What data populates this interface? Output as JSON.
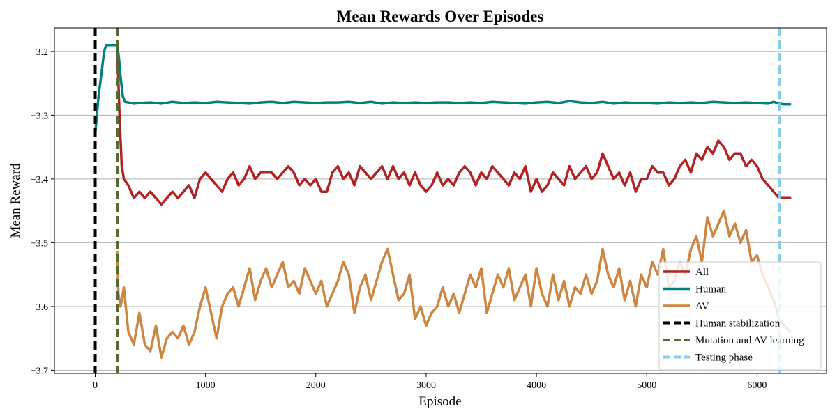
{
  "chart_data": {
    "type": "line",
    "title": "Mean Rewards Over Episodes",
    "xlabel": "Episode",
    "ylabel": "Mean Reward",
    "xlim": [
      -370,
      6630
    ],
    "ylim": [
      -3.705,
      -3.163
    ],
    "xticks": [
      0,
      1000,
      2000,
      3000,
      4000,
      5000,
      6000
    ],
    "xtick_labels": [
      "0",
      "1000",
      "2000",
      "3000",
      "4000",
      "5000",
      "6000"
    ],
    "yticks": [
      -3.7,
      -3.6,
      -3.5,
      -3.4,
      -3.3,
      -3.2
    ],
    "ytick_labels": [
      "−3.7",
      "−3.6",
      "−3.5",
      "−3.4",
      "−3.3",
      "−3.2"
    ],
    "grid": "horizontal",
    "legend_position": "lower-right",
    "series": [
      {
        "name": "All",
        "color": "#b22222",
        "x": [
          200,
          220,
          240,
          260,
          300,
          350,
          400,
          450,
          500,
          550,
          600,
          650,
          700,
          750,
          800,
          850,
          900,
          950,
          1000,
          1050,
          1100,
          1150,
          1200,
          1250,
          1300,
          1350,
          1400,
          1450,
          1500,
          1550,
          1600,
          1650,
          1700,
          1750,
          1800,
          1850,
          1900,
          1950,
          2000,
          2050,
          2100,
          2150,
          2200,
          2250,
          2300,
          2350,
          2400,
          2450,
          2500,
          2550,
          2600,
          2650,
          2700,
          2750,
          2800,
          2850,
          2900,
          2950,
          3000,
          3050,
          3100,
          3150,
          3200,
          3250,
          3300,
          3350,
          3400,
          3450,
          3500,
          3550,
          3600,
          3650,
          3700,
          3750,
          3800,
          3850,
          3900,
          3950,
          4000,
          4050,
          4100,
          4150,
          4200,
          4250,
          4300,
          4350,
          4400,
          4450,
          4500,
          4550,
          4600,
          4650,
          4700,
          4750,
          4800,
          4850,
          4900,
          4950,
          5000,
          5050,
          5100,
          5150,
          5200,
          5250,
          5300,
          5350,
          5400,
          5450,
          5500,
          5550,
          5600,
          5650,
          5700,
          5750,
          5800,
          5850,
          5900,
          5950,
          6000,
          6050,
          6100,
          6150,
          6200,
          6250,
          6300
        ],
        "values": [
          -3.19,
          -3.3,
          -3.38,
          -3.4,
          -3.41,
          -3.43,
          -3.42,
          -3.43,
          -3.42,
          -3.43,
          -3.44,
          -3.43,
          -3.42,
          -3.43,
          -3.42,
          -3.41,
          -3.43,
          -3.4,
          -3.39,
          -3.4,
          -3.41,
          -3.42,
          -3.4,
          -3.39,
          -3.41,
          -3.4,
          -3.38,
          -3.4,
          -3.39,
          -3.39,
          -3.39,
          -3.4,
          -3.39,
          -3.38,
          -3.39,
          -3.41,
          -3.4,
          -3.41,
          -3.4,
          -3.42,
          -3.42,
          -3.39,
          -3.38,
          -3.4,
          -3.39,
          -3.41,
          -3.38,
          -3.39,
          -3.4,
          -3.39,
          -3.38,
          -3.4,
          -3.38,
          -3.4,
          -3.39,
          -3.41,
          -3.39,
          -3.41,
          -3.42,
          -3.41,
          -3.39,
          -3.41,
          -3.4,
          -3.41,
          -3.39,
          -3.38,
          -3.39,
          -3.41,
          -3.39,
          -3.4,
          -3.38,
          -3.39,
          -3.4,
          -3.41,
          -3.39,
          -3.4,
          -3.38,
          -3.42,
          -3.4,
          -3.42,
          -3.41,
          -3.39,
          -3.4,
          -3.41,
          -3.38,
          -3.4,
          -3.39,
          -3.38,
          -3.4,
          -3.39,
          -3.36,
          -3.38,
          -3.4,
          -3.39,
          -3.41,
          -3.39,
          -3.42,
          -3.4,
          -3.4,
          -3.38,
          -3.39,
          -3.39,
          -3.41,
          -3.4,
          -3.38,
          -3.37,
          -3.39,
          -3.36,
          -3.37,
          -3.35,
          -3.36,
          -3.34,
          -3.35,
          -3.37,
          -3.36,
          -3.36,
          -3.38,
          -3.37,
          -3.38,
          -3.4,
          -3.41,
          -3.42,
          -3.43,
          -3.43,
          -3.43
        ]
      },
      {
        "name": "Human",
        "color": "#00807f",
        "x": [
          0,
          30,
          60,
          80,
          100,
          120,
          150,
          180,
          200,
          215,
          230,
          250,
          270,
          300,
          350,
          400,
          500,
          600,
          700,
          800,
          900,
          1000,
          1100,
          1200,
          1300,
          1400,
          1500,
          1600,
          1700,
          1800,
          1900,
          2000,
          2100,
          2200,
          2300,
          2400,
          2500,
          2600,
          2700,
          2800,
          2900,
          3000,
          3100,
          3200,
          3300,
          3400,
          3500,
          3600,
          3700,
          3800,
          3900,
          4000,
          4100,
          4200,
          4300,
          4400,
          4500,
          4600,
          4700,
          4800,
          4900,
          5000,
          5100,
          5200,
          5300,
          5400,
          5500,
          5600,
          5700,
          5800,
          5900,
          6000,
          6100,
          6150,
          6200,
          6250,
          6300
        ],
        "values": [
          -3.33,
          -3.27,
          -3.23,
          -3.2,
          -3.19,
          -3.19,
          -3.19,
          -3.19,
          -3.19,
          -3.21,
          -3.24,
          -3.27,
          -3.279,
          -3.28,
          -3.282,
          -3.281,
          -3.28,
          -3.282,
          -3.279,
          -3.281,
          -3.28,
          -3.281,
          -3.279,
          -3.28,
          -3.281,
          -3.282,
          -3.28,
          -3.279,
          -3.281,
          -3.279,
          -3.28,
          -3.281,
          -3.28,
          -3.28,
          -3.279,
          -3.281,
          -3.279,
          -3.282,
          -3.28,
          -3.281,
          -3.28,
          -3.281,
          -3.28,
          -3.28,
          -3.281,
          -3.28,
          -3.281,
          -3.279,
          -3.28,
          -3.281,
          -3.282,
          -3.28,
          -3.279,
          -3.281,
          -3.278,
          -3.28,
          -3.281,
          -3.279,
          -3.282,
          -3.28,
          -3.281,
          -3.281,
          -3.282,
          -3.28,
          -3.281,
          -3.28,
          -3.281,
          -3.279,
          -3.28,
          -3.281,
          -3.28,
          -3.281,
          -3.282,
          -3.279,
          -3.282,
          -3.283,
          -3.283
        ]
      },
      {
        "name": "AV",
        "color": "#cd853f",
        "x": [
          200,
          210,
          230,
          260,
          300,
          350,
          400,
          450,
          500,
          550,
          600,
          650,
          700,
          750,
          800,
          850,
          900,
          950,
          1000,
          1050,
          1100,
          1150,
          1200,
          1250,
          1300,
          1350,
          1400,
          1450,
          1500,
          1550,
          1600,
          1650,
          1700,
          1750,
          1800,
          1850,
          1900,
          1950,
          2000,
          2050,
          2100,
          2150,
          2200,
          2250,
          2300,
          2350,
          2400,
          2450,
          2500,
          2550,
          2600,
          2650,
          2700,
          2750,
          2800,
          2850,
          2900,
          2950,
          3000,
          3050,
          3100,
          3150,
          3200,
          3250,
          3300,
          3350,
          3400,
          3450,
          3500,
          3550,
          3600,
          3650,
          3700,
          3750,
          3800,
          3850,
          3900,
          3950,
          4000,
          4050,
          4100,
          4150,
          4200,
          4250,
          4300,
          4350,
          4400,
          4450,
          4500,
          4550,
          4600,
          4650,
          4700,
          4750,
          4800,
          4850,
          4900,
          4950,
          5000,
          5050,
          5100,
          5150,
          5200,
          5250,
          5300,
          5350,
          5400,
          5450,
          5500,
          5550,
          5600,
          5650,
          5700,
          5750,
          5800,
          5850,
          5900,
          5950,
          6000,
          6050,
          6100,
          6150,
          6200,
          6250,
          6300
        ],
        "values": [
          -3.515,
          -3.58,
          -3.6,
          -3.57,
          -3.64,
          -3.66,
          -3.61,
          -3.66,
          -3.67,
          -3.63,
          -3.68,
          -3.65,
          -3.64,
          -3.65,
          -3.63,
          -3.66,
          -3.64,
          -3.6,
          -3.57,
          -3.61,
          -3.65,
          -3.6,
          -3.58,
          -3.57,
          -3.6,
          -3.57,
          -3.54,
          -3.59,
          -3.56,
          -3.54,
          -3.57,
          -3.55,
          -3.53,
          -3.57,
          -3.56,
          -3.58,
          -3.54,
          -3.56,
          -3.58,
          -3.56,
          -3.6,
          -3.58,
          -3.56,
          -3.53,
          -3.55,
          -3.61,
          -3.57,
          -3.55,
          -3.59,
          -3.56,
          -3.53,
          -3.51,
          -3.55,
          -3.59,
          -3.58,
          -3.55,
          -3.62,
          -3.6,
          -3.63,
          -3.61,
          -3.6,
          -3.57,
          -3.6,
          -3.58,
          -3.61,
          -3.58,
          -3.55,
          -3.57,
          -3.54,
          -3.61,
          -3.58,
          -3.55,
          -3.57,
          -3.54,
          -3.59,
          -3.57,
          -3.55,
          -3.6,
          -3.54,
          -3.58,
          -3.6,
          -3.55,
          -3.59,
          -3.56,
          -3.6,
          -3.57,
          -3.58,
          -3.55,
          -3.58,
          -3.56,
          -3.51,
          -3.55,
          -3.57,
          -3.54,
          -3.59,
          -3.56,
          -3.6,
          -3.55,
          -3.57,
          -3.53,
          -3.55,
          -3.51,
          -3.57,
          -3.56,
          -3.53,
          -3.55,
          -3.51,
          -3.49,
          -3.53,
          -3.46,
          -3.49,
          -3.47,
          -3.45,
          -3.49,
          -3.47,
          -3.5,
          -3.48,
          -3.53,
          -3.52,
          -3.55,
          -3.57,
          -3.59,
          -3.62,
          -3.63,
          -3.64
        ]
      }
    ],
    "vlines": [
      {
        "name": "Human stabilization",
        "x": 0,
        "color": "#000000"
      },
      {
        "name": "Mutation and AV learning",
        "x": 200,
        "color": "#556b2f"
      },
      {
        "name": "Testing phase",
        "x": 6200,
        "color": "#87ceeb"
      }
    ]
  }
}
